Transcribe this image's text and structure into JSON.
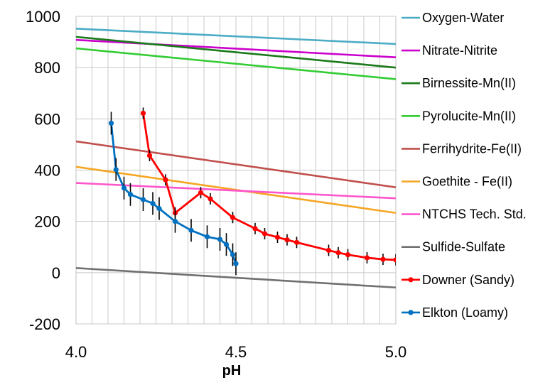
{
  "chart_data": {
    "type": "line",
    "xlabel": "pH",
    "ylabel": "",
    "xlim": [
      4.0,
      5.0
    ],
    "ylim": [
      -200,
      1000
    ],
    "x_ticks": [
      4.0,
      4.5,
      5.0
    ],
    "x_tick_labels": [
      "4.0",
      "4.5",
      "5.0"
    ],
    "y_ticks": [
      -200,
      0,
      200,
      400,
      600,
      800,
      1000
    ],
    "y_tick_labels": [
      "-200",
      "0",
      "200",
      "400",
      "600",
      "800",
      "1000"
    ],
    "grid": true,
    "legend_position": "right",
    "series": [
      {
        "name": "Oxygen-Water",
        "color": "#4bacc6",
        "marker": "none",
        "x": [
          4.0,
          5.0
        ],
        "y": [
          952,
          892
        ]
      },
      {
        "name": "Nitrate-Nitrite",
        "color": "#cc00cc",
        "marker": "none",
        "x": [
          4.0,
          5.0
        ],
        "y": [
          908,
          840
        ]
      },
      {
        "name": "Birnessite-Mn(II)",
        "color": "#1a7a1a",
        "marker": "none",
        "x": [
          4.0,
          5.0
        ],
        "y": [
          920,
          800
        ]
      },
      {
        "name": "Pyrolucite-Mn(II)",
        "color": "#33cc33",
        "marker": "none",
        "x": [
          4.0,
          5.0
        ],
        "y": [
          875,
          755
        ]
      },
      {
        "name": "Ferrihydrite-Fe(II)",
        "color": "#c0504d",
        "marker": "none",
        "x": [
          4.0,
          5.0
        ],
        "y": [
          512,
          333
        ]
      },
      {
        "name": "Goethite - Fe(II)",
        "color": "#f5a623",
        "marker": "none",
        "x": [
          4.0,
          5.0
        ],
        "y": [
          413,
          233
        ]
      },
      {
        "name": "NTCHS Tech. Std.",
        "color": "#ff55cc",
        "marker": "none",
        "x": [
          4.0,
          5.0
        ],
        "y": [
          350,
          290
        ]
      },
      {
        "name": "Sulfide-Sulfate",
        "color": "#707070",
        "marker": "none",
        "x": [
          4.0,
          5.0
        ],
        "y": [
          18,
          -58
        ]
      },
      {
        "name": "Downer (Sandy)",
        "color": "#ff0000",
        "marker": "circle",
        "x": [
          4.21,
          4.23,
          4.28,
          4.31,
          4.39,
          4.42,
          4.49,
          4.56,
          4.59,
          4.63,
          4.66,
          4.69,
          4.79,
          4.82,
          4.85,
          4.91,
          4.96,
          5.0
        ],
        "y": [
          622,
          457,
          362,
          233,
          312,
          288,
          215,
          172,
          152,
          138,
          128,
          118,
          87,
          78,
          70,
          58,
          52,
          50
        ]
      },
      {
        "name": "Elkton (Loamy)",
        "color": "#0070c0",
        "marker": "circle",
        "x": [
          4.11,
          4.125,
          4.15,
          4.17,
          4.21,
          4.24,
          4.26,
          4.31,
          4.36,
          4.41,
          4.45,
          4.47,
          4.49,
          4.5
        ],
        "y": [
          583,
          402,
          330,
          305,
          285,
          270,
          250,
          200,
          165,
          140,
          130,
          110,
          70,
          35
        ]
      }
    ]
  }
}
